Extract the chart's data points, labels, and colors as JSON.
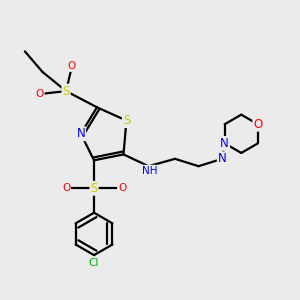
{
  "bg_color": "#ebebeb",
  "atom_colors": {
    "S": "#cccc00",
    "N": "#0000ee",
    "O": "#ff0000",
    "Cl": "#00aa00",
    "C": "#000000",
    "H": "#888888"
  },
  "bond_color": "#000000",
  "lw": 1.6
}
